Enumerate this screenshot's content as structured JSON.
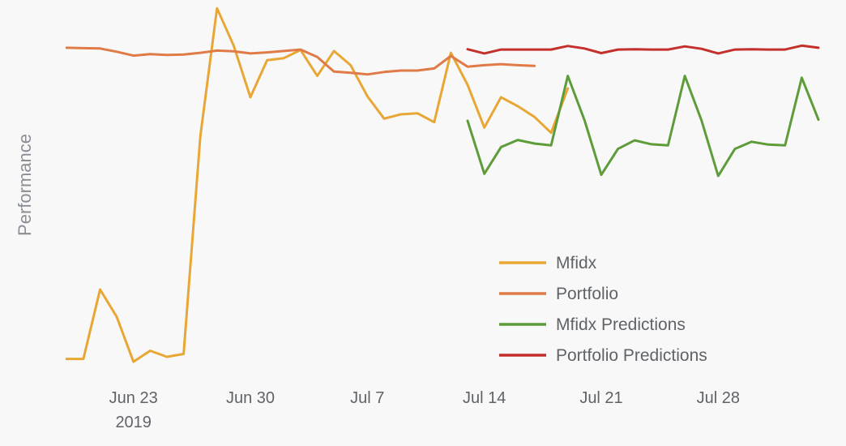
{
  "chart_data": {
    "type": "line",
    "title": "",
    "xlabel": "",
    "ylabel": "Performance",
    "xlim": [
      "2019-06-17",
      "2019-08-03"
    ],
    "ylim": [
      0,
      100
    ],
    "grid": false,
    "legend_position": "bottom-right",
    "x_ticks": [
      {
        "date": "2019-06-23",
        "label": "Jun 23",
        "sublabel": "2019"
      },
      {
        "date": "2019-06-30",
        "label": "Jun 30",
        "sublabel": ""
      },
      {
        "date": "2019-07-07",
        "label": "Jul 7",
        "sublabel": ""
      },
      {
        "date": "2019-07-14",
        "label": "Jul 14",
        "sublabel": ""
      },
      {
        "date": "2019-07-21",
        "label": "Jul 21",
        "sublabel": ""
      },
      {
        "date": "2019-07-28",
        "label": "Jul 28",
        "sublabel": ""
      }
    ],
    "series": [
      {
        "name": "Mfidx",
        "color": "#e8a735",
        "points": [
          [
            "2019-06-19",
            1
          ],
          [
            "2019-06-20",
            1
          ],
          [
            "2019-06-21",
            20.5
          ],
          [
            "2019-06-22",
            12.8
          ],
          [
            "2019-06-23",
            0.2
          ],
          [
            "2019-06-24",
            3.3
          ],
          [
            "2019-06-25",
            1.6
          ],
          [
            "2019-06-26",
            2.4
          ],
          [
            "2019-06-27",
            63.5
          ],
          [
            "2019-06-28",
            99.5
          ],
          [
            "2019-06-29",
            89
          ],
          [
            "2019-06-30",
            74.5
          ],
          [
            "2019-07-01",
            84.9
          ],
          [
            "2019-07-02",
            85.5
          ],
          [
            "2019-07-03",
            87.8
          ],
          [
            "2019-07-04",
            80.5
          ],
          [
            "2019-07-05",
            87.5
          ],
          [
            "2019-07-06",
            83.5
          ],
          [
            "2019-07-07",
            74.8
          ],
          [
            "2019-07-08",
            68.5
          ],
          [
            "2019-07-09",
            69.7
          ],
          [
            "2019-07-10",
            70
          ],
          [
            "2019-07-11",
            67.5
          ],
          [
            "2019-07-12",
            87
          ],
          [
            "2019-07-13",
            78
          ],
          [
            "2019-07-14",
            66
          ],
          [
            "2019-07-15",
            74.5
          ],
          [
            "2019-07-16",
            72
          ],
          [
            "2019-07-17",
            69
          ],
          [
            "2019-07-18",
            64.5
          ],
          [
            "2019-07-19",
            77
          ]
        ]
      },
      {
        "name": "Portfolio",
        "color": "#e07b47",
        "points": [
          [
            "2019-06-19",
            88.4
          ],
          [
            "2019-06-20",
            88.3
          ],
          [
            "2019-06-21",
            88.2
          ],
          [
            "2019-06-22",
            87.3
          ],
          [
            "2019-06-23",
            86.2
          ],
          [
            "2019-06-24",
            86.6
          ],
          [
            "2019-06-25",
            86.4
          ],
          [
            "2019-06-26",
            86.5
          ],
          [
            "2019-06-27",
            87
          ],
          [
            "2019-06-28",
            87.6
          ],
          [
            "2019-06-29",
            87.4
          ],
          [
            "2019-06-30",
            86.8
          ],
          [
            "2019-07-01",
            87.1
          ],
          [
            "2019-07-02",
            87.5
          ],
          [
            "2019-07-03",
            87.9
          ],
          [
            "2019-07-04",
            85.8
          ],
          [
            "2019-07-05",
            81.7
          ],
          [
            "2019-07-06",
            81.4
          ],
          [
            "2019-07-07",
            80.9
          ],
          [
            "2019-07-08",
            81.6
          ],
          [
            "2019-07-09",
            82
          ],
          [
            "2019-07-10",
            82
          ],
          [
            "2019-07-11",
            82.6
          ],
          [
            "2019-07-12",
            86.1
          ],
          [
            "2019-07-13",
            83.1
          ],
          [
            "2019-07-14",
            83.5
          ],
          [
            "2019-07-15",
            83.8
          ],
          [
            "2019-07-16",
            83.5
          ],
          [
            "2019-07-17",
            83.3
          ]
        ]
      },
      {
        "name": "Mfidx Predictions",
        "color": "#5e9c3a",
        "points": [
          [
            "2019-07-13",
            67.9
          ],
          [
            "2019-07-14",
            53
          ],
          [
            "2019-07-15",
            60.5
          ],
          [
            "2019-07-16",
            62.5
          ],
          [
            "2019-07-17",
            61.5
          ],
          [
            "2019-07-18",
            61
          ],
          [
            "2019-07-19",
            80.5
          ],
          [
            "2019-07-20",
            68
          ],
          [
            "2019-07-21",
            52.7
          ],
          [
            "2019-07-22",
            60
          ],
          [
            "2019-07-23",
            62.4
          ],
          [
            "2019-07-24",
            61.3
          ],
          [
            "2019-07-25",
            61
          ],
          [
            "2019-07-26",
            80.5
          ],
          [
            "2019-07-27",
            68
          ],
          [
            "2019-07-28",
            52.4
          ],
          [
            "2019-07-29",
            60
          ],
          [
            "2019-07-30",
            62
          ],
          [
            "2019-07-31",
            61.2
          ],
          [
            "2019-08-01",
            61
          ],
          [
            "2019-08-02",
            80
          ],
          [
            "2019-08-03",
            68.2
          ]
        ]
      },
      {
        "name": "Portfolio Predictions",
        "color": "#c4302b",
        "points": [
          [
            "2019-07-13",
            88
          ],
          [
            "2019-07-14",
            86.8
          ],
          [
            "2019-07-15",
            87.9
          ],
          [
            "2019-07-16",
            87.9
          ],
          [
            "2019-07-17",
            87.9
          ],
          [
            "2019-07-18",
            87.9
          ],
          [
            "2019-07-19",
            88.9
          ],
          [
            "2019-07-20",
            88.2
          ],
          [
            "2019-07-21",
            86.9
          ],
          [
            "2019-07-22",
            87.9
          ],
          [
            "2019-07-23",
            88
          ],
          [
            "2019-07-24",
            87.9
          ],
          [
            "2019-07-25",
            87.9
          ],
          [
            "2019-07-26",
            88.8
          ],
          [
            "2019-07-27",
            88.1
          ],
          [
            "2019-07-28",
            86.8
          ],
          [
            "2019-07-29",
            87.9
          ],
          [
            "2019-07-30",
            88
          ],
          [
            "2019-07-31",
            87.9
          ],
          [
            "2019-08-01",
            87.9
          ],
          [
            "2019-08-02",
            89
          ],
          [
            "2019-08-03",
            88.4
          ]
        ]
      }
    ]
  }
}
